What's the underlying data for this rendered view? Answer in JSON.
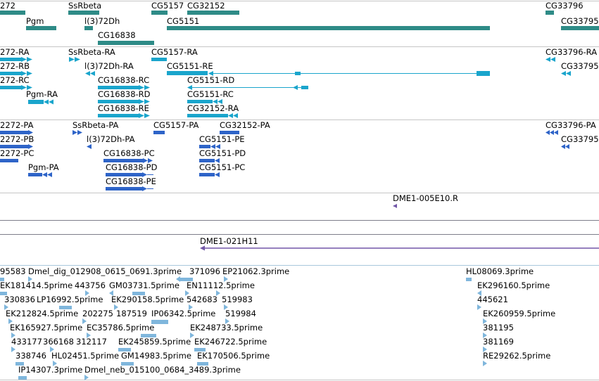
{
  "colors": {
    "gene": "#2e8b87",
    "transcript": "#1aa5cc",
    "protein": "#2e64c8",
    "clone": "#7257a8",
    "est": "#7fb6dc",
    "separator": "#c6c6c6"
  },
  "tracks": {
    "genes": [
      {
        "name": "272",
        "label": "272"
      },
      {
        "name": "SsRbeta",
        "label": "SsRbeta"
      },
      {
        "name": "CG5157",
        "label": "CG5157"
      },
      {
        "name": "CG32152",
        "label": "CG32152"
      },
      {
        "name": "CG33796",
        "label": "CG33796"
      },
      {
        "name": "Pgm",
        "label": "Pgm"
      },
      {
        "name": "l(3)72Dh",
        "label": "l(3)72Dh"
      },
      {
        "name": "CG5151",
        "label": "CG5151"
      },
      {
        "name": "CG33795",
        "label": "CG33795"
      },
      {
        "name": "CG16838",
        "label": "CG16838"
      }
    ],
    "transcripts": [
      {
        "name": "272-RA",
        "label": "272-RA"
      },
      {
        "name": "SsRbeta-RA",
        "label": "SsRbeta-RA"
      },
      {
        "name": "CG5157-RA",
        "label": "CG5157-RA"
      },
      {
        "name": "CG33796-RA",
        "label": "CG33796-RA"
      },
      {
        "name": "272-RB",
        "label": "272-RB"
      },
      {
        "name": "l(3)72Dh-RA",
        "label": "l(3)72Dh-RA"
      },
      {
        "name": "CG5151-RE",
        "label": "CG5151-RE"
      },
      {
        "name": "CG33795",
        "label": "CG33795"
      },
      {
        "name": "272-RC",
        "label": "272-RC"
      },
      {
        "name": "CG16838-RC",
        "label": "CG16838-RC"
      },
      {
        "name": "CG5151-RD",
        "label": "CG5151-RD"
      },
      {
        "name": "Pgm-RA",
        "label": "Pgm-RA"
      },
      {
        "name": "CG16838-RD",
        "label": "CG16838-RD"
      },
      {
        "name": "CG5151-RC",
        "label": "CG5151-RC"
      },
      {
        "name": "CG16838-RE",
        "label": "CG16838-RE"
      },
      {
        "name": "CG32152-RA",
        "label": "CG32152-RA"
      }
    ],
    "proteins": [
      {
        "name": "2272-PA",
        "label": "2272-PA"
      },
      {
        "name": "SsRbeta-PA",
        "label": "SsRbeta-PA"
      },
      {
        "name": "CG5157-PA",
        "label": "CG5157-PA"
      },
      {
        "name": "CG32152-PA",
        "label": "CG32152-PA"
      },
      {
        "name": "CG33796-PA",
        "label": "CG33796-PA"
      },
      {
        "name": "2272-PB",
        "label": "2272-PB"
      },
      {
        "name": "l(3)72Dh-PA",
        "label": "l(3)72Dh-PA"
      },
      {
        "name": "CG5151-PE",
        "label": "CG5151-PE"
      },
      {
        "name": "CG33795",
        "label": "CG33795"
      },
      {
        "name": "2272-PC",
        "label": "2272-PC"
      },
      {
        "name": "CG16838-PC",
        "label": "CG16838-PC"
      },
      {
        "name": "CG5151-PD",
        "label": "CG5151-PD"
      },
      {
        "name": "Pgm-PA",
        "label": "Pgm-PA"
      },
      {
        "name": "CG16838-PD",
        "label": "CG16838-PD"
      },
      {
        "name": "CG5151-PC",
        "label": "CG5151-PC"
      },
      {
        "name": "CG16838-PE",
        "label": "CG16838-PE"
      }
    ],
    "clone_ends": [
      {
        "name": "DME1-005E10.R",
        "label": "DME1-005E10.R"
      }
    ],
    "clones": [
      {
        "name": "DME1-021H11",
        "label": "DME1-021H11"
      }
    ],
    "ests": [
      {
        "label": "95583"
      },
      {
        "label": "Dmel_dig_012908_0615_0691.3prime"
      },
      {
        "label": "371096"
      },
      {
        "label": "EP21062.3prime"
      },
      {
        "label": "HL08069.3prime"
      },
      {
        "label": "EK181414.5prime"
      },
      {
        "label": "443756"
      },
      {
        "label": "GM03731.5prime"
      },
      {
        "label": "EN11112.5prime"
      },
      {
        "label": "EK296160.5prime"
      },
      {
        "label": "330836"
      },
      {
        "label": "LP16992.5prime"
      },
      {
        "label": "EK290158.5prime"
      },
      {
        "label": "542683"
      },
      {
        "label": "519983"
      },
      {
        "label": "445621"
      },
      {
        "label": "EK212824.5prime"
      },
      {
        "label": "202275"
      },
      {
        "label": "187519"
      },
      {
        "label": "IP06342.5prime"
      },
      {
        "label": "519984"
      },
      {
        "label": "EK260959.5prime"
      },
      {
        "label": "EK165927.5prime"
      },
      {
        "label": "EC35786.5prime"
      },
      {
        "label": "EK248733.5prime"
      },
      {
        "label": "381195"
      },
      {
        "label": "433177"
      },
      {
        "label": "366168"
      },
      {
        "label": "312117"
      },
      {
        "label": "EK245859.5prime"
      },
      {
        "label": "EK246722.5prime"
      },
      {
        "label": "381169"
      },
      {
        "label": "338746"
      },
      {
        "label": "HL02451.5prime"
      },
      {
        "label": "GM14983.5prime"
      },
      {
        "label": "EK170506.5prime"
      },
      {
        "label": "RE29262.5prime"
      },
      {
        "label": "IP14307.3prime"
      },
      {
        "label": "Dmel_neb_015100_0684_3489.3prime"
      }
    ]
  }
}
